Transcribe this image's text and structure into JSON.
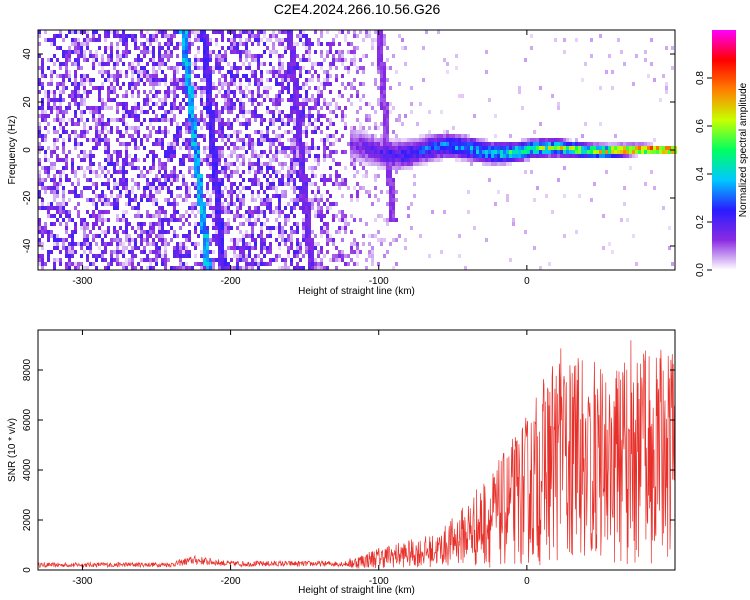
{
  "title": "C2E4.2024.266.10.56.G26",
  "chart_data": [
    {
      "type": "heatmap",
      "xlabel": "Height of straight line (km)",
      "ylabel": "Frequency (Hz)",
      "xlim": [
        -330,
        100
      ],
      "ylim": [
        -50,
        50
      ],
      "x_ticks": [
        -300,
        -200,
        -100,
        0
      ],
      "y_ticks": [
        -40,
        -20,
        0,
        20,
        40
      ],
      "colorbar": {
        "label": "Normalized spectral amplitude",
        "range": [
          0.0,
          1.0
        ],
        "ticks": [
          0.0,
          0.2,
          0.4,
          0.6,
          0.8
        ],
        "tick_labels": [
          "0.0",
          "0.2",
          "0.4",
          "0.6",
          "0.8"
        ],
        "colormap": [
          "#ffffff",
          "#8a2be2",
          "#2a1cff",
          "#00c8ff",
          "#00ff60",
          "#c8ff00",
          "#ff8000",
          "#ff0000",
          "#ff00ff"
        ]
      },
      "features": {
        "noise_region_x": [
          -330,
          -70
        ],
        "main_signal": {
          "x": [
            -120,
            100
          ],
          "y": 0,
          "half_width_at_start": 8,
          "half_width_at_end": 2
        },
        "diagonal_streaks": [
          {
            "x0": -232,
            "y0": 50,
            "x1": -215,
            "y1": -50,
            "peak": 0.35
          },
          {
            "x0": -218,
            "y0": 50,
            "x1": -205,
            "y1": -50,
            "peak": 0.2
          },
          {
            "x0": -160,
            "y0": 50,
            "x1": -145,
            "y1": -50,
            "peak": 0.15
          },
          {
            "x0": -100,
            "y0": 50,
            "x1": -90,
            "y1": -30,
            "peak": 0.12
          }
        ]
      }
    },
    {
      "type": "line",
      "xlabel": "Height of straight line (km)",
      "ylabel": "SNR (10 * v/v)",
      "xlim": [
        -330,
        100
      ],
      "ylim": [
        0,
        9600
      ],
      "x_ticks": [
        -300,
        -200,
        -100,
        0
      ],
      "y_ticks": [
        0,
        2000,
        4000,
        6000,
        8000
      ],
      "series_color": "#e8302a",
      "envelope": [
        {
          "x": -330,
          "y": 200
        },
        {
          "x": -240,
          "y": 220
        },
        {
          "x": -225,
          "y": 400
        },
        {
          "x": -200,
          "y": 250
        },
        {
          "x": -120,
          "y": 250
        },
        {
          "x": -100,
          "y": 500
        },
        {
          "x": -60,
          "y": 800
        },
        {
          "x": -40,
          "y": 1500
        },
        {
          "x": -20,
          "y": 2200
        },
        {
          "x": 0,
          "y": 3200
        },
        {
          "x": 20,
          "y": 4600
        },
        {
          "x": 40,
          "y": 4300
        },
        {
          "x": 60,
          "y": 4200
        },
        {
          "x": 80,
          "y": 4600
        },
        {
          "x": 100,
          "y": 4700
        }
      ]
    }
  ]
}
